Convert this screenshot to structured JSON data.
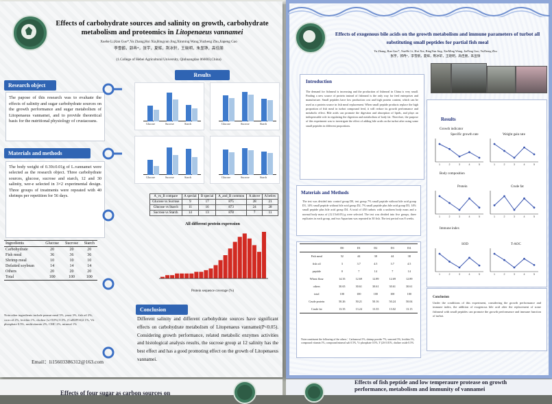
{
  "left": {
    "title_line1": "Effects of carbohydrate sources and salinity on growth, carbohydrate",
    "title_line2": "metabolism and proteomics in",
    "title_species": "Litopenaeus vannamei",
    "authors": "Xuehe Li,Ran Guo*,Yu Zhang,Hui Xia,Bingyun Jing,Xinming Wang,Yuzheng Zhu,Jiapeng Gao",
    "authors_cn": "李雪鹤，郭冉*，张宇，夏辉，荆冰轩，王晓明，朱显铮，高佳朋",
    "affiliation": "(1.College of Hebei Agricultural University, Qinhuangdao 066003,China)",
    "research_object": {
      "heading": "Research object",
      "text": "The papose of this research was to evaluate the effects of salinity and sugar carbohydrate sources on the growth performance and sugar metabolism of Litopenaeus vannamei, and to provide theoretical basis for the nutritional physiology of crustaceans."
    },
    "materials": {
      "heading": "Materials and methods",
      "text": "The body weight of 0.39±0.01g of L.vannamei were selected as the research object. Three carbohydrate sources, glucose, sucrose and starch, 12 and 30 salinity, wer-e selected in 3×2 experimental design. Three groups of treatments were repeated with 40 shrimps per repetition for 56 days."
    },
    "ingredients_table": {
      "headers": [
        "Ingredients",
        "Glucose",
        "Sucrose",
        "Starch"
      ],
      "rows": [
        [
          "Carbohydrate",
          "20",
          "20",
          "20"
        ],
        [
          "Fish meal",
          "36",
          "36",
          "36"
        ],
        [
          "Shrimp meal",
          "10",
          "10",
          "10"
        ],
        [
          "Defatted soybean",
          "14",
          "14",
          "14"
        ],
        [
          "Others",
          "20",
          "20",
          "20"
        ],
        [
          "Total",
          "100",
          "100",
          "100"
        ]
      ]
    },
    "note": "Note:other ingredients include peanut meal 5%, yeast 3%, fish oil 2%, corn oil 2%, lecithin 1%, choline (w=50%) 0.5%, (CaH2PO4)2 1%, Vit phosphate 0.5%, multivitamin 2%, CMC 2%, mineral 1%",
    "email": "Email：li15603386312@163.com",
    "results_heading": "Results",
    "mini_charts": [
      {
        "label": "a1",
        "groups": [
          "Glucose",
          "Sucrose",
          "Starch"
        ],
        "values": [
          [
            2.1,
            1.5
          ],
          [
            3.8,
            2.9
          ],
          [
            2.2,
            1.7
          ]
        ]
      },
      {
        "label": "a2",
        "groups": [
          "Glucose",
          "Sucrose",
          "Starch"
        ],
        "values": [
          [
            3.4,
            3.1
          ],
          [
            3.9,
            3.5
          ],
          [
            3.0,
            2.8
          ]
        ]
      },
      {
        "label": "b1",
        "groups": [
          "Glucose",
          "Sucrose",
          "Starch"
        ],
        "values": [
          [
            2.0,
            1.2
          ],
          [
            3.6,
            2.6
          ],
          [
            3.4,
            2.3
          ]
        ]
      },
      {
        "label": "b2",
        "groups": [
          "Glucose",
          "Sucrose",
          "Starch"
        ],
        "values": [
          [
            3.3,
            3.0
          ],
          [
            3.5,
            3.2
          ],
          [
            3.1,
            2.9
          ]
        ]
      }
    ],
    "compare_table": {
      "headers": [
        "A_vs_B compare",
        "A special",
        "B special",
        "A_and_B common",
        "A above",
        "A below"
      ],
      "rows": [
        [
          "Glucose vs Sucrose",
          "9",
          "17",
          "875",
          "28",
          "21"
        ],
        [
          "Glucose vs Starch",
          "11",
          "16",
          "873",
          "24",
          "28"
        ],
        [
          "Sucrose vs Starch",
          "14",
          "13",
          "878",
          "7",
          "11"
        ]
      ]
    },
    "histogram": {
      "title": "All different protein expression",
      "xlabel": "Protein sequence coverage (%)",
      "values": [
        1,
        2,
        2,
        3,
        3,
        3,
        3,
        4,
        4,
        5,
        6,
        8,
        11,
        14,
        18,
        22,
        25,
        27,
        24,
        20,
        16,
        28
      ]
    },
    "conclusion": {
      "heading": "Conclusion",
      "text": "Different salinity and different carbohydrate sources have significant effects on carbohydrate metabolism of Litopenaeus vannamei(P<0.05). Considering growth performance, related metabolic enzymes activities and histological analysis results, the sucrose group at 12 salinity has the best effect and has a good promoting effect on the growth of Litopenaeus vannamei."
    }
  },
  "right": {
    "title_line1": "Effects of exogenous bile acids on the growth metabolism and immune parameters of turbot all",
    "title_line2": "substituting small peptides for partial fish meal",
    "authors": "Yu Zhang, Ran Guo*, XueHe Li, Hui Xia, BingYun Jing, XinMing Wang, JiaPeng Gao, YuZheng Zhu",
    "authors_cn": "张宇，郭冉*，李雪鹤，夏辉，荆冰轩，王晓明，高佳朋，朱显铮",
    "intro": {
      "heading": "Introduction",
      "text": "The demand for fishmeal is increasing and the production of fishmeal in China is very small. Finding a new source of protein instead of fishmeal is the only way for feed enterprises and manufacture. Small peptides have low production cost and high protein content, which can be used as a protein source in fish meal replacement. When small peptide products replace the high proportion of fish meal in turbot compound feed, it will reduce its growth performance and metabolic effect. Bile acids can promote the digestion and absorption of lipids, and plays an indispensable role in regulating the digestion and metabolism of body fat. Therefore, the purpose of this experiment was to investigate the effect of adding bile acids on the turbot after using some small peptides in different proportions."
    },
    "methods": {
      "heading": "Materials and Methods",
      "text": "The test was divided into control group D0, test group 7% small peptide without bile acid group D1, 14% small peptide without bile acid group D2, 7% small peptide plus bile acid group D3, 14% small peptide plus bile acid group D4. A total of 450 turbots with a uniform body mass and a normal body mass of (12.15±0.05) g were selected. The test was divided into five groups, three replicates in each group, and two Aquarium was repeated in 30 fish. The test period was 8 weeks."
    },
    "diet_table": {
      "headers": [
        "",
        "D0",
        "D1",
        "D2",
        "D3",
        "D4"
      ],
      "rows": [
        [
          "Fish meal",
          "52",
          "44",
          "38",
          "44",
          "38"
        ],
        [
          "fish oil",
          "3",
          "3.7",
          "4.5",
          "3.7",
          "4.5"
        ],
        [
          "peptide",
          "0",
          "7",
          "14",
          "7",
          "14"
        ],
        [
          "Wheat flour",
          "14.35",
          "12.69",
          "12.89",
          "12.69",
          "12.89"
        ],
        [
          "others",
          "30.65",
          "30.61",
          "30.61",
          "30.61",
          "30.61"
        ],
        [
          "total",
          "100",
          "100",
          "100",
          "100",
          "100"
        ],
        [
          "Crude protein",
          "50.26",
          "50.21",
          "50.16",
          "50.24",
          "50.04"
        ],
        [
          "Crude fat",
          "13.35",
          "13.24",
          "13.35",
          "13.02",
          "13.15"
        ]
      ]
    },
    "diet_note": "Note:constituent the following of the others：Carbonosul 1%, shrimp powder 7%, seaweed 5%, lecithin 1%, compound vitamin 1%, compound mineral salt 0.5%, Vc phosphate 0.5%, Y (2S 0.01%, choline oxide 0.5%",
    "results_heading": "Results",
    "growth_heading": "Growth indicator",
    "sgr_label": "Specific growth rate",
    "wgr_label": "Weight gain rate",
    "body_heading": "Body composition",
    "protein_label": "Protein",
    "crudefat_label": "Crude fat",
    "immune_heading": "Immune index",
    "sod_label": "SOD",
    "taoc_label": "T-AOC",
    "conclusion": {
      "heading": "Conclusion",
      "text": "Under the conditions of this experiment, considering the growth performance and immune index, the addition of exogenous bile acid after the replacement of some fishmeal with small peptides can promote the growth performance and immune function of turbot."
    },
    "line_charts": {
      "sgr": [
        1.18,
        1.1,
        0.98,
        1.05,
        0.96
      ],
      "wgr": [
        9,
        8,
        7,
        8.5,
        7.5
      ],
      "protein": [
        50,
        47,
        44,
        49,
        45
      ],
      "crudefat": [
        6,
        8,
        5,
        7.5,
        5.5
      ],
      "sod": [
        40,
        36,
        33,
        38,
        34
      ],
      "taoc": [
        2.3,
        1.8,
        1.2,
        1.9,
        1.4
      ]
    },
    "x_ticks": [
      "1",
      "2",
      "3",
      "4",
      "5"
    ]
  },
  "bottom": {
    "left_title": "Effects of four sugar as carbon sources on",
    "right_title_line1": "Effects of fish peptide and low temperaure protease on growth",
    "right_title_line2": "performance, metabolism and immunity of vannamei"
  },
  "colors": {
    "section_blue": "#2f64b3",
    "bar_dark": "#3f7bcc",
    "bar_light": "#a9c7e6",
    "hist_red": "#d22a22",
    "right_border": "#8fa7d8"
  }
}
